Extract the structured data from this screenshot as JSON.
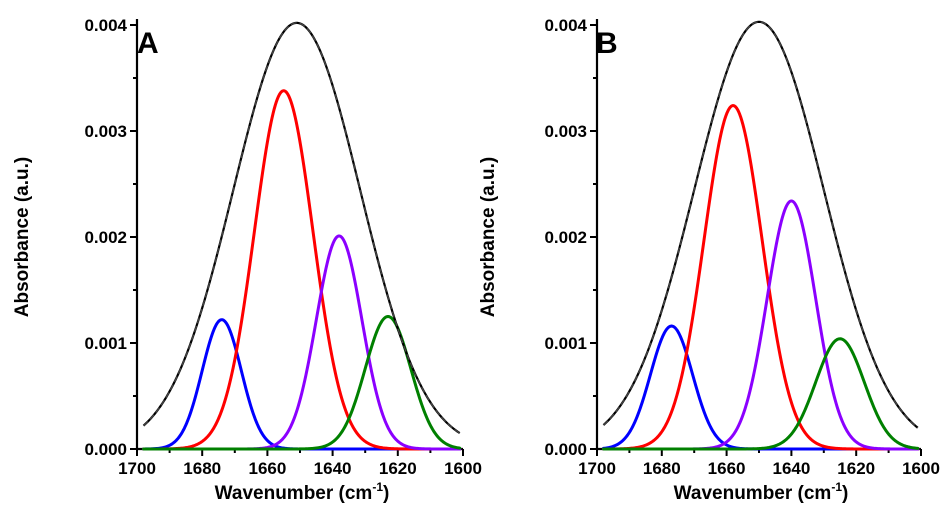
{
  "chart_data": [
    {
      "type": "line",
      "panel_label": "A",
      "xlabel_main": "Wavenumber (cm",
      "xlabel_sup": "-1",
      "xlabel_tail": ")",
      "ylabel": "Absorbance (a.u.)",
      "xlim": [
        1700,
        1600
      ],
      "ylim": [
        0,
        0.004
      ],
      "x_ticks": [
        1700,
        1680,
        1660,
        1640,
        1620,
        1600
      ],
      "y_ticks": [
        "0.000",
        "0.001",
        "0.002",
        "0.003",
        "0.004"
      ],
      "x_range_plotted": [
        1698,
        1601
      ],
      "envelope": {
        "center": 1651,
        "amplitude": 0.00402,
        "sigma": 19.5,
        "color": "#000000"
      },
      "series": [
        {
          "center": 1674,
          "amplitude": 0.00122,
          "sigma": 6.0,
          "color": "#0000ff"
        },
        {
          "center": 1655,
          "amplitude": 0.00338,
          "sigma": 9.0,
          "color": "#ff0000"
        },
        {
          "center": 1638,
          "amplitude": 0.00201,
          "sigma": 7.0,
          "color": "#8b00ff"
        },
        {
          "center": 1623,
          "amplitude": 0.00125,
          "sigma": 7.0,
          "color": "#008000"
        }
      ]
    },
    {
      "type": "line",
      "panel_label": "B",
      "xlabel_main": "Wavenumber (cm",
      "xlabel_sup": "-1",
      "xlabel_tail": ")",
      "ylabel": "Absorbance (a.u.)",
      "xlim": [
        1700,
        1600
      ],
      "ylim": [
        0,
        0.004
      ],
      "x_ticks": [
        1700,
        1680,
        1660,
        1640,
        1620,
        1600
      ],
      "y_ticks": [
        "0.000",
        "0.001",
        "0.002",
        "0.003",
        "0.004"
      ],
      "x_range_plotted": [
        1698,
        1601
      ],
      "envelope": {
        "center": 1650,
        "amplitude": 0.00403,
        "sigma": 20.0,
        "color": "#000000"
      },
      "series": [
        {
          "center": 1677,
          "amplitude": 0.00116,
          "sigma": 6.5,
          "color": "#0000ff"
        },
        {
          "center": 1658,
          "amplitude": 0.00324,
          "sigma": 9.0,
          "color": "#ff0000"
        },
        {
          "center": 1640,
          "amplitude": 0.00234,
          "sigma": 7.5,
          "color": "#8b00ff"
        },
        {
          "center": 1625,
          "amplitude": 0.00104,
          "sigma": 7.5,
          "color": "#008000"
        }
      ]
    }
  ]
}
